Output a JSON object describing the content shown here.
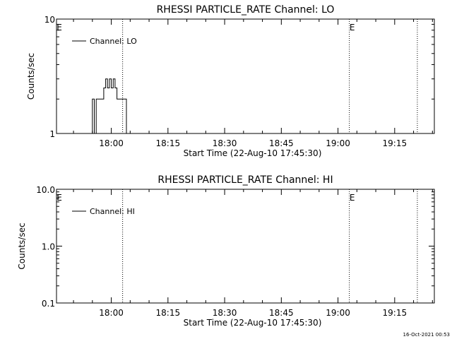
{
  "timestamp": "16-Oct-2021 00:53",
  "chart_data": [
    {
      "type": "line",
      "title": "RHESSI PARTICLE_RATE Channel: LO",
      "xlabel": "Start Time (22-Aug-10 17:45:30)",
      "ylabel": "Counts/sec",
      "y_scale": "log",
      "ylim": [
        1,
        10
      ],
      "y_ticks": [
        "1",
        "10"
      ],
      "xlim": [
        "17:45:30",
        "19:25:30"
      ],
      "x_ticks": [
        "18:00",
        "18:15",
        "18:30",
        "18:45",
        "19:00",
        "19:15"
      ],
      "legend": [
        "Channel: LO"
      ],
      "legend_position": "top-left",
      "flags": [
        "E",
        "E"
      ],
      "dotted_lines": [
        "18:03",
        "19:03",
        "19:21"
      ],
      "series": [
        {
          "name": "Channel: LO",
          "x": [
            "17:55",
            "17:55",
            "17:55:30",
            "17:55:30",
            "17:56",
            "17:56",
            "17:58",
            "17:58",
            "17:58:30",
            "17:58:30",
            "17:59",
            "17:59",
            "17:59:30",
            "17:59:30",
            "18:00",
            "18:00",
            "18:00:30",
            "18:00:30",
            "18:01",
            "18:01",
            "18:01:30",
            "18:01:30",
            "18:02",
            "18:02",
            "18:04",
            "18:04",
            "18:04:30",
            "18:04:30"
          ],
          "values": [
            1,
            2,
            2,
            1,
            1,
            2,
            2,
            2.5,
            2.5,
            3,
            3,
            2.5,
            2.5,
            3,
            3,
            2.5,
            2.5,
            3,
            3,
            2.5,
            2.5,
            2,
            2,
            2,
            2,
            1,
            1,
            1
          ]
        }
      ]
    },
    {
      "type": "line",
      "title": "RHESSI PARTICLE_RATE Channel: HI",
      "xlabel": "Start Time (22-Aug-10 17:45:30)",
      "ylabel": "Counts/sec",
      "y_scale": "log",
      "ylim": [
        0.1,
        10
      ],
      "y_ticks": [
        "0.1",
        "1.0",
        "10.0"
      ],
      "xlim": [
        "17:45:30",
        "19:25:30"
      ],
      "x_ticks": [
        "18:00",
        "18:15",
        "18:30",
        "18:45",
        "19:00",
        "19:15"
      ],
      "legend": [
        "Channel: HI"
      ],
      "legend_position": "top-left",
      "flags": [
        "E",
        "E"
      ],
      "dotted_lines": [
        "18:03",
        "19:03",
        "19:21"
      ],
      "series": [
        {
          "name": "Channel: HI",
          "x": [],
          "values": []
        }
      ]
    }
  ]
}
